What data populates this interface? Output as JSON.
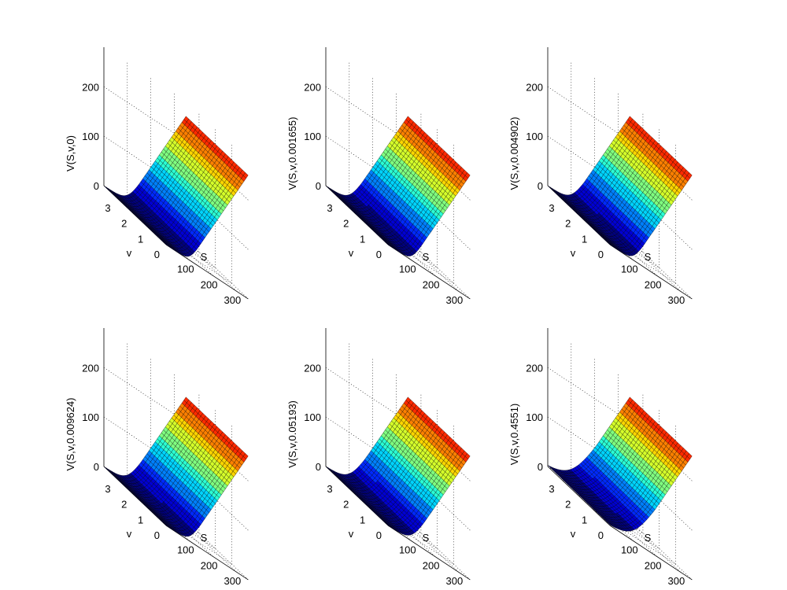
{
  "chart_data": [
    {
      "type": "surface",
      "zlabel": "V(S,v,0)",
      "xlabel": "S",
      "ylabel": "v",
      "x_ticks": [
        "100",
        "200",
        "300"
      ],
      "y_ticks": [
        "0",
        "1",
        "2",
        "3"
      ],
      "z_ticks": [
        "0",
        "100",
        "200"
      ],
      "xlim": [
        0,
        350
      ],
      "ylim": [
        0,
        3.8
      ],
      "zlim": [
        0,
        280
      ],
      "grid": true,
      "colormap": "jet"
    },
    {
      "type": "surface",
      "zlabel": "V(S,v,0.001655)",
      "xlabel": "S",
      "ylabel": "v",
      "x_ticks": [
        "100",
        "200",
        "300"
      ],
      "y_ticks": [
        "0",
        "1",
        "2",
        "3"
      ],
      "z_ticks": [
        "0",
        "100",
        "200"
      ],
      "xlim": [
        0,
        350
      ],
      "ylim": [
        0,
        3.8
      ],
      "zlim": [
        0,
        280
      ],
      "grid": true,
      "colormap": "jet"
    },
    {
      "type": "surface",
      "zlabel": "V(S,v,0.004902)",
      "xlabel": "S",
      "ylabel": "v",
      "x_ticks": [
        "100",
        "200",
        "300"
      ],
      "y_ticks": [
        "0",
        "1",
        "2",
        "3"
      ],
      "z_ticks": [
        "0",
        "100",
        "200"
      ],
      "xlim": [
        0,
        350
      ],
      "ylim": [
        0,
        3.8
      ],
      "zlim": [
        0,
        280
      ],
      "grid": true,
      "colormap": "jet"
    },
    {
      "type": "surface",
      "zlabel": "V(S,v,0.009624)",
      "xlabel": "S",
      "ylabel": "v",
      "x_ticks": [
        "100",
        "200",
        "300"
      ],
      "y_ticks": [
        "0",
        "1",
        "2",
        "3"
      ],
      "z_ticks": [
        "0",
        "100",
        "200"
      ],
      "xlim": [
        0,
        350
      ],
      "ylim": [
        0,
        3.8
      ],
      "zlim": [
        0,
        280
      ],
      "grid": true,
      "colormap": "jet"
    },
    {
      "type": "surface",
      "zlabel": "V(S,v,0.05193)",
      "xlabel": "S",
      "ylabel": "v",
      "x_ticks": [
        "100",
        "200",
        "300"
      ],
      "y_ticks": [
        "0",
        "1",
        "2",
        "3"
      ],
      "z_ticks": [
        "0",
        "100",
        "200"
      ],
      "xlim": [
        0,
        350
      ],
      "ylim": [
        0,
        3.8
      ],
      "zlim": [
        0,
        280
      ],
      "grid": true,
      "colormap": "jet"
    },
    {
      "type": "surface",
      "zlabel": "V(S,v,0.4551)",
      "xlabel": "S",
      "ylabel": "v",
      "x_ticks": [
        "100",
        "200",
        "300"
      ],
      "y_ticks": [
        "0",
        "1",
        "2",
        "3"
      ],
      "z_ticks": [
        "0",
        "100",
        "200"
      ],
      "xlim": [
        0,
        350
      ],
      "ylim": [
        0,
        3.8
      ],
      "zlim": [
        0,
        280
      ],
      "grid": true,
      "colormap": "jet"
    }
  ]
}
